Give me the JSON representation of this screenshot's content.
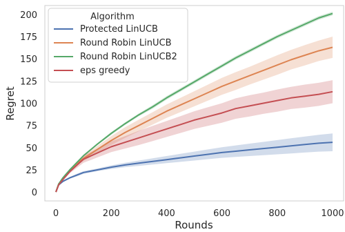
{
  "chart_data": {
    "type": "line",
    "title": "",
    "xlabel": "Rounds",
    "ylabel": "Regret",
    "xlim": [
      -40,
      1040
    ],
    "ylim": [
      -10,
      210
    ],
    "xticks": [
      0,
      200,
      400,
      600,
      800,
      1000
    ],
    "yticks": [
      0,
      25,
      50,
      75,
      100,
      125,
      150,
      175,
      200
    ],
    "grid": false,
    "legend": {
      "title": "Algorithm",
      "placement": "top-left"
    },
    "x": [
      0,
      10,
      25,
      50,
      75,
      100,
      150,
      200,
      250,
      300,
      350,
      400,
      450,
      500,
      550,
      600,
      650,
      700,
      750,
      800,
      850,
      900,
      950,
      1000
    ],
    "series": [
      {
        "name": "Protected LinUCB",
        "color": "#4c72b0",
        "values": [
          0,
          8,
          12,
          16,
          19,
          22,
          25,
          28,
          30.5,
          32.5,
          34.5,
          36.5,
          38.5,
          40.5,
          42.5,
          44.5,
          46,
          47.5,
          49,
          50.5,
          52,
          53.5,
          55,
          56
        ],
        "band": [
          0,
          0.5,
          1,
          1,
          1.5,
          1.5,
          1.5,
          2,
          2.5,
          3,
          3.5,
          4,
          4.5,
          5,
          5.5,
          6,
          6.5,
          7,
          7.5,
          8,
          8.5,
          9,
          9.5,
          10
        ]
      },
      {
        "name": "Round Robin LinUCB",
        "color": "#dd8452",
        "values": [
          0,
          9,
          15,
          24,
          32,
          38,
          48,
          58,
          67,
          75,
          83,
          91,
          98,
          105,
          112,
          119,
          125,
          131,
          137,
          143,
          149,
          154,
          159,
          163
        ],
        "band": [
          0,
          0.5,
          1,
          1.5,
          2,
          3,
          4,
          5,
          6,
          6.5,
          7,
          7.5,
          8,
          8.5,
          9,
          9.5,
          10,
          10,
          10.5,
          11,
          11,
          11.5,
          11.5,
          12
        ]
      },
      {
        "name": "Round Robin LinUCB2",
        "color": "#55a868",
        "values": [
          0,
          9,
          16,
          25,
          33,
          41,
          54,
          66,
          77,
          87,
          96,
          106,
          115,
          124,
          133,
          142,
          151,
          159,
          167,
          175,
          182,
          189,
          196,
          201
        ],
        "band": [
          0,
          0.3,
          0.5,
          0.5,
          1,
          1,
          1,
          1.5,
          1.5,
          1.5,
          2,
          2,
          2,
          2,
          2,
          2,
          2,
          2,
          2,
          2,
          2,
          2,
          2,
          2
        ]
      },
      {
        "name": "eps greedy",
        "color": "#c44e52",
        "values": [
          0,
          8,
          14,
          23,
          30,
          37,
          44,
          51,
          56,
          61,
          66,
          71,
          76,
          81,
          85,
          89,
          94,
          97,
          100,
          103,
          106,
          108,
          110,
          113
        ],
        "band": [
          0,
          0.5,
          1,
          2,
          3,
          4,
          5,
          6,
          7,
          8,
          8.5,
          9,
          9.5,
          10,
          10.5,
          11,
          11.5,
          12,
          12,
          12.5,
          12.5,
          13,
          13,
          13
        ]
      }
    ]
  }
}
